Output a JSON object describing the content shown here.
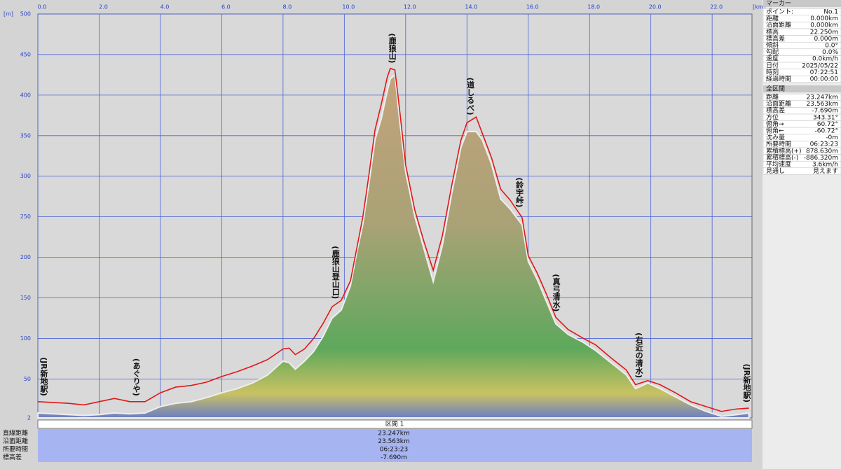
{
  "chart_data": {
    "type": "area",
    "y_unit": "[m]",
    "x_unit": "[km]",
    "xlim": [
      0,
      23.3
    ],
    "ylim": [
      2,
      500
    ],
    "xticks": [
      {
        "value": 0,
        "label": "0.0"
      },
      {
        "value": 2,
        "label": "2.0"
      },
      {
        "value": 4,
        "label": "4.0"
      },
      {
        "value": 6,
        "label": "6.0"
      },
      {
        "value": 8,
        "label": "8.0"
      },
      {
        "value": 10,
        "label": "10.0"
      },
      {
        "value": 12,
        "label": "12.0"
      },
      {
        "value": 14,
        "label": "14.0"
      },
      {
        "value": 16,
        "label": "16.0"
      },
      {
        "value": 18,
        "label": "18.0"
      },
      {
        "value": 20,
        "label": "20.0"
      },
      {
        "value": 22,
        "label": "22.0"
      }
    ],
    "yticks": [
      2,
      50,
      100,
      150,
      200,
      250,
      300,
      350,
      400,
      450,
      500
    ],
    "grid": true,
    "grid_color": "#4a62d8",
    "background": "#d9d9d9",
    "x": [
      0,
      1,
      1.5,
      2,
      2.5,
      3,
      3.5,
      4,
      4.5,
      5,
      5.5,
      6,
      6.5,
      7,
      7.5,
      8,
      8.2,
      8.4,
      8.7,
      9,
      9.3,
      9.6,
      9.9,
      10.2,
      10.4,
      10.6,
      10.8,
      11,
      11.2,
      11.4,
      11.5,
      11.65,
      11.8,
      12,
      12.3,
      12.6,
      12.9,
      13.2,
      13.5,
      13.8,
      14,
      14.3,
      14.5,
      14.8,
      15.1,
      15.4,
      15.6,
      15.8,
      16,
      16.3,
      16.6,
      16.9,
      17.3,
      17.8,
      18.2,
      18.7,
      19.2,
      19.5,
      19.9,
      20.3,
      20.8,
      21.3,
      21.8,
      22.3,
      22.8,
      23.2
    ],
    "series": [
      {
        "kind": "area",
        "colors": [
          "#c4a37c",
          "#a9a276",
          "#5ea85c",
          "#c9c262",
          "#6c7ec4"
        ],
        "values": [
          8,
          6,
          5,
          6,
          8,
          7,
          8,
          16,
          20,
          22,
          27,
          33,
          38,
          45,
          55,
          72,
          70,
          62,
          72,
          84,
          102,
          125,
          135,
          165,
          205,
          240,
          290,
          345,
          370,
          405,
          420,
          425,
          370,
          305,
          250,
          210,
          170,
          215,
          278,
          335,
          355,
          355,
          345,
          315,
          272,
          260,
          250,
          240,
          195,
          172,
          145,
          118,
          105,
          95,
          85,
          70,
          55,
          38,
          45,
          38,
          28,
          18,
          10,
          4,
          6,
          8
        ]
      },
      {
        "kind": "line",
        "color": "#e01818",
        "values": [
          22,
          20,
          18,
          22,
          26,
          22,
          22,
          33,
          40,
          42,
          46,
          53,
          59,
          66,
          74,
          87,
          88,
          80,
          87,
          100,
          118,
          139,
          147,
          171,
          210,
          249,
          301,
          357,
          388,
          422,
          433,
          431,
          383,
          314,
          258,
          219,
          184,
          227,
          288,
          344,
          366,
          373,
          353,
          323,
          284,
          271,
          260,
          249,
          202,
          180,
          154,
          126,
          111,
          100,
          92,
          76,
          61,
          43,
          48,
          43,
          33,
          22,
          16,
          10,
          13,
          14
        ]
      }
    ],
    "annotations": [
      {
        "x": 0,
        "text": "(JR新地駅)"
      },
      {
        "x": 3.2,
        "text": "(あぐりや)"
      },
      {
        "x": 9.7,
        "text": "(鹿狼山登山口)"
      },
      {
        "x": 11.55,
        "text": "(鹿狼山)"
      },
      {
        "x": 14.1,
        "text": "(道しるべ)"
      },
      {
        "x": 15.7,
        "text": "(鈴宇峠)"
      },
      {
        "x": 16.9,
        "text": "(真弓清水)"
      },
      {
        "x": 19.6,
        "text": "(右近の清水)"
      },
      {
        "x": 23.2,
        "text": "(JR新地駅)"
      }
    ]
  },
  "section_bar": {
    "label": "区間 1",
    "rows": [
      [
        "直線距離",
        "23.247km"
      ],
      [
        "沿面距離",
        "23.563km"
      ],
      [
        "所要時間",
        "06:23:23"
      ],
      [
        "標高差",
        "-7.690m"
      ]
    ]
  },
  "marker_panel": {
    "title": "マーカー",
    "rows": [
      [
        "ポイント:",
        "No.1"
      ],
      [
        "距離",
        "0.000km"
      ],
      [
        "沿面距離",
        "0.000km"
      ],
      [
        "標高",
        "22.250m"
      ],
      [
        "標高差",
        "0.000m"
      ],
      [
        "傾斜",
        "0.0°"
      ],
      [
        "勾配",
        "0.0%"
      ],
      [
        "速度",
        "0.0km/h"
      ],
      [
        "日付",
        "2025/05/22"
      ],
      [
        "時刻",
        "07:22:51"
      ],
      [
        "経過時間",
        "00:00:00"
      ]
    ]
  },
  "total_panel": {
    "title": "全区間",
    "rows": [
      [
        "距離",
        "23.247km"
      ],
      [
        "沿面距離",
        "23.563km"
      ],
      [
        "標高差",
        "-7.690m"
      ],
      [
        "方位",
        "343.31°"
      ],
      [
        "俯角→",
        "60.72°"
      ],
      [
        "俯角←",
        "-60.72°"
      ],
      [
        "沈み量",
        "-0m"
      ],
      [
        "所要時間",
        "06:23:23"
      ],
      [
        "累積標高(+)",
        "878.630m"
      ],
      [
        "累積標高(-)",
        "-886.320m"
      ],
      [
        "平均速度",
        "3.6km/h"
      ],
      [
        "見通し",
        "見えます"
      ]
    ]
  }
}
